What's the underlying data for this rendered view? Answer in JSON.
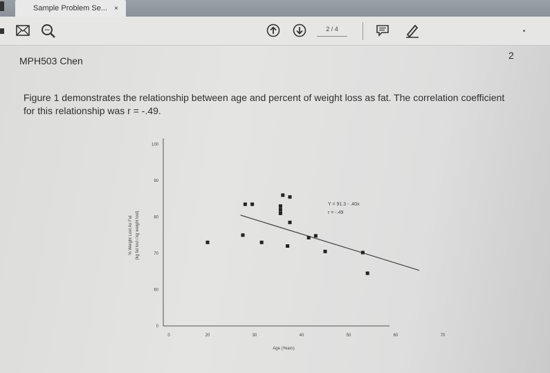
{
  "tab": {
    "title": "Sample Problem Se...",
    "close_glyph": "×"
  },
  "toolbar": {
    "mail_icon": "mail-icon",
    "search_icon": "search-icon",
    "prev_icon": "arrow-up-circle-icon",
    "next_icon": "arrow-down-circle-icon",
    "page_indicator": "2 / 4",
    "comment_icon": "comment-icon",
    "pen_icon": "pen-icon"
  },
  "page": {
    "header_left": "MPH503 Chen",
    "header_right": "2",
    "paragraph": "Figure 1 demonstrates the relationship between age and percent of weight loss as fat. The correlation coefficient for this relationship was r = -.49."
  },
  "chart_data": {
    "type": "scatter",
    "xlabel": "Age (Years)",
    "ylabel_line1": "% Weight Lost As Fat",
    "ylabel_line2": "(kg fat lost / kg weight lost)",
    "x_ticks": [
      "0",
      "20",
      "30",
      "40",
      "50",
      "60",
      "70"
    ],
    "y_ticks": [
      "0",
      "60",
      "70",
      "80",
      "90",
      "100"
    ],
    "annotation_line1": "Y = 91.3 - .40x",
    "annotation_line2": "r = -.49",
    "regression": {
      "intercept": 91.3,
      "slope": -0.4,
      "x_range": [
        27,
        65
      ]
    },
    "points": [
      {
        "x": 20,
        "y": 73
      },
      {
        "x": 27.5,
        "y": 75
      },
      {
        "x": 28,
        "y": 83.5
      },
      {
        "x": 29.5,
        "y": 83.5
      },
      {
        "x": 31.5,
        "y": 73
      },
      {
        "x": 35.5,
        "y": 81
      },
      {
        "x": 35.5,
        "y": 82
      },
      {
        "x": 35.5,
        "y": 83
      },
      {
        "x": 36,
        "y": 86
      },
      {
        "x": 37.5,
        "y": 85.5
      },
      {
        "x": 37.5,
        "y": 78.5
      },
      {
        "x": 37,
        "y": 72
      },
      {
        "x": 41.5,
        "y": 74.3
      },
      {
        "x": 43,
        "y": 74.8
      },
      {
        "x": 45,
        "y": 70.5
      },
      {
        "x": 53,
        "y": 70.2
      },
      {
        "x": 54,
        "y": 64.5
      }
    ],
    "grid": false,
    "legend": "none"
  }
}
